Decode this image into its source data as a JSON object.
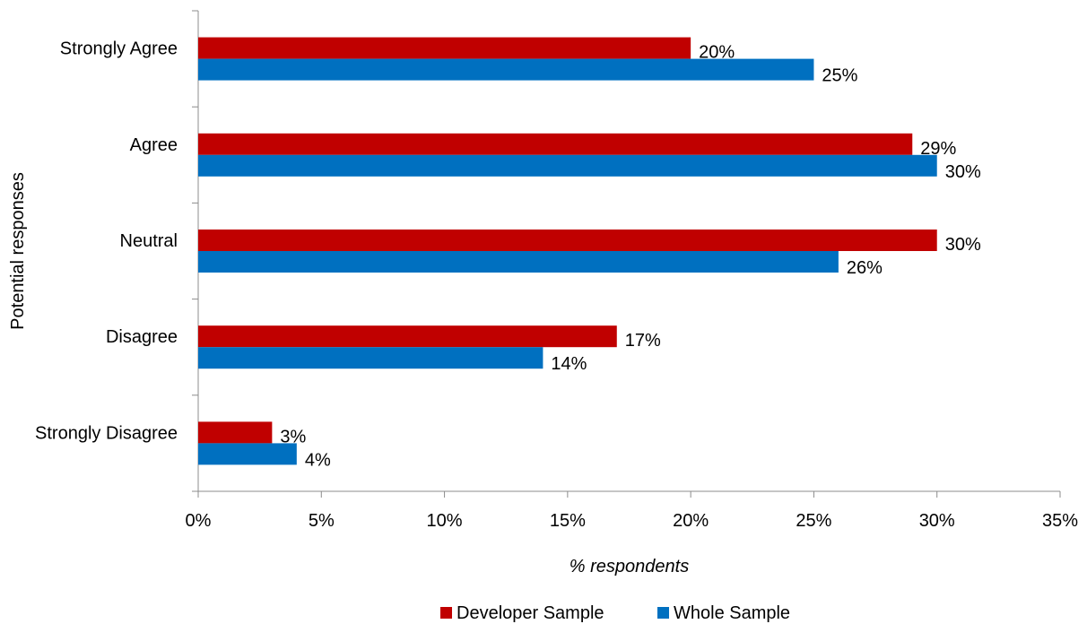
{
  "chart_data": {
    "type": "bar",
    "orientation": "horizontal",
    "categories": [
      "Strongly Agree",
      "Agree",
      "Neutral",
      "Disagree",
      "Strongly Disagree"
    ],
    "series": [
      {
        "name": "Developer Sample",
        "color": "#c00000",
        "values": [
          20,
          29,
          30,
          17,
          3
        ],
        "labels": [
          "20%",
          "29%",
          "30%",
          "17%",
          "3%"
        ]
      },
      {
        "name": "Whole Sample",
        "color": "#0070c0",
        "values": [
          25,
          30,
          26,
          14,
          4
        ],
        "labels": [
          "25%",
          "30%",
          "26%",
          "14%",
          "4%"
        ]
      }
    ],
    "xlabel": "% respondents",
    "ylabel": "Potential responses",
    "xlim": [
      0,
      35
    ],
    "xticks": [
      0,
      5,
      10,
      15,
      20,
      25,
      30,
      35
    ],
    "xtick_labels": [
      "0%",
      "5%",
      "10%",
      "15%",
      "20%",
      "25%",
      "30%",
      "35%"
    ],
    "grid": false,
    "legend_position": "bottom"
  }
}
